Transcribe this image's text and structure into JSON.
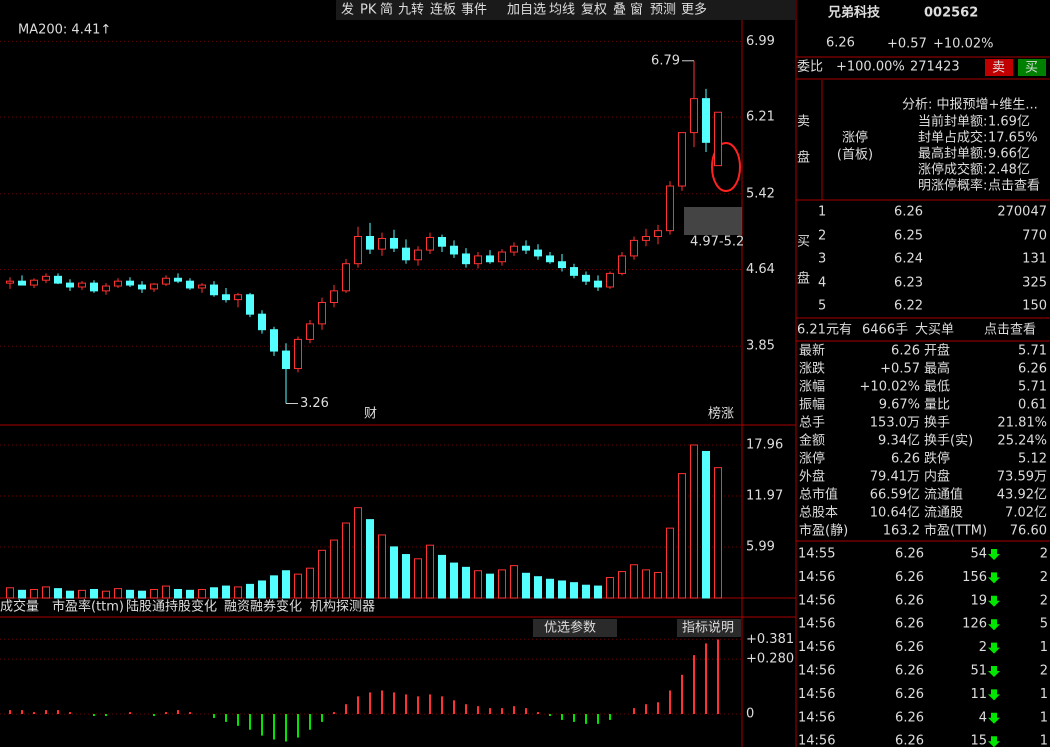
{
  "toolbar": {
    "buttons": [
      "发",
      "PK",
      "简",
      "九转",
      "连板",
      "事件",
      "加自选",
      "均线",
      "复权",
      "叠",
      "窗",
      "预测",
      "更多"
    ]
  },
  "price_chart": {
    "ma_label": "MA200: 4.41↑",
    "ylim": [
      3.09,
      7.21
    ],
    "yticks": [
      6.99,
      6.21,
      5.42,
      4.64,
      3.85
    ],
    "high_label": 6.79,
    "low_label": 3.26,
    "range_label": "4.97-5.2",
    "event_labels": [
      "财",
      "榜涨"
    ],
    "up_color": "#ff3232",
    "down_color": "#54ffff",
    "candles": [
      [
        4.5,
        4.56,
        4.44,
        4.52
      ],
      [
        4.52,
        4.58,
        4.48,
        4.48
      ],
      [
        4.48,
        4.55,
        4.45,
        4.53
      ],
      [
        4.53,
        4.6,
        4.5,
        4.57
      ],
      [
        4.57,
        4.6,
        4.49,
        4.5
      ],
      [
        4.5,
        4.54,
        4.42,
        4.46
      ],
      [
        4.46,
        4.52,
        4.43,
        4.5
      ],
      [
        4.5,
        4.53,
        4.4,
        4.42
      ],
      [
        4.42,
        4.5,
        4.38,
        4.47
      ],
      [
        4.47,
        4.55,
        4.45,
        4.52
      ],
      [
        4.52,
        4.56,
        4.46,
        4.48
      ],
      [
        4.48,
        4.52,
        4.4,
        4.44
      ],
      [
        4.44,
        4.5,
        4.41,
        4.49
      ],
      [
        4.49,
        4.58,
        4.47,
        4.55
      ],
      [
        4.55,
        4.6,
        4.5,
        4.52
      ],
      [
        4.52,
        4.55,
        4.43,
        4.45
      ],
      [
        4.45,
        4.5,
        4.4,
        4.48
      ],
      [
        4.48,
        4.52,
        4.36,
        4.38
      ],
      [
        4.38,
        4.45,
        4.3,
        4.33
      ],
      [
        4.33,
        4.4,
        4.25,
        4.38
      ],
      [
        4.38,
        4.4,
        4.15,
        4.18
      ],
      [
        4.18,
        4.22,
        3.98,
        4.02
      ],
      [
        4.02,
        4.05,
        3.75,
        3.8
      ],
      [
        3.8,
        3.88,
        3.26,
        3.62
      ],
      [
        3.62,
        3.95,
        3.58,
        3.92
      ],
      [
        3.92,
        4.12,
        3.88,
        4.08
      ],
      [
        4.08,
        4.35,
        4.02,
        4.3
      ],
      [
        4.3,
        4.48,
        4.25,
        4.42
      ],
      [
        4.42,
        4.75,
        4.4,
        4.7
      ],
      [
        4.7,
        5.08,
        4.66,
        4.98
      ],
      [
        4.98,
        5.12,
        4.8,
        4.85
      ],
      [
        4.85,
        5.02,
        4.78,
        4.96
      ],
      [
        4.96,
        5.05,
        4.82,
        4.86
      ],
      [
        4.86,
        4.95,
        4.7,
        4.74
      ],
      [
        4.74,
        4.88,
        4.68,
        4.84
      ],
      [
        4.84,
        5.02,
        4.8,
        4.97
      ],
      [
        4.97,
        5.0,
        4.82,
        4.88
      ],
      [
        4.88,
        4.94,
        4.76,
        4.8
      ],
      [
        4.8,
        4.86,
        4.66,
        4.7
      ],
      [
        4.7,
        4.82,
        4.65,
        4.78
      ],
      [
        4.78,
        4.84,
        4.7,
        4.72
      ],
      [
        4.72,
        4.85,
        4.68,
        4.82
      ],
      [
        4.82,
        4.92,
        4.78,
        4.88
      ],
      [
        4.88,
        4.94,
        4.8,
        4.84
      ],
      [
        4.84,
        4.9,
        4.74,
        4.78
      ],
      [
        4.78,
        4.82,
        4.7,
        4.72
      ],
      [
        4.72,
        4.8,
        4.62,
        4.66
      ],
      [
        4.66,
        4.7,
        4.55,
        4.58
      ],
      [
        4.58,
        4.62,
        4.48,
        4.52
      ],
      [
        4.52,
        4.58,
        4.42,
        4.46
      ],
      [
        4.46,
        4.62,
        4.44,
        4.6
      ],
      [
        4.6,
        4.82,
        4.58,
        4.78
      ],
      [
        4.78,
        4.98,
        4.74,
        4.94
      ],
      [
        4.94,
        5.06,
        4.88,
        4.98
      ],
      [
        4.98,
        5.1,
        4.9,
        5.04
      ],
      [
        5.04,
        5.55,
        5.0,
        5.5
      ],
      [
        5.5,
        6.05,
        5.45,
        6.05
      ],
      [
        6.05,
        6.79,
        5.9,
        6.4
      ],
      [
        6.4,
        6.5,
        5.85,
        5.95
      ],
      [
        5.71,
        6.26,
        5.71,
        6.26
      ]
    ]
  },
  "volume_chart": {
    "ylim": [
      0,
      19.72
    ],
    "yticks": [
      17.96,
      11.97,
      5.99
    ],
    "values": [
      1.2,
      0.9,
      1.0,
      1.3,
      1.1,
      0.8,
      0.9,
      1.0,
      0.8,
      1.1,
      0.9,
      0.8,
      1.0,
      1.4,
      1.0,
      0.9,
      1.0,
      1.2,
      1.4,
      1.3,
      1.6,
      2.0,
      2.6,
      3.2,
      2.8,
      3.5,
      5.6,
      6.8,
      8.8,
      10.6,
      9.2,
      7.4,
      6.0,
      5.1,
      4.6,
      6.2,
      5.0,
      4.1,
      3.6,
      3.2,
      2.8,
      3.3,
      3.8,
      2.9,
      2.5,
      2.2,
      2.0,
      1.8,
      1.5,
      1.4,
      2.4,
      3.1,
      3.9,
      3.3,
      3.0,
      8.2,
      14.6,
      17.96,
      17.2,
      15.3
    ]
  },
  "tabs": [
    "成交量",
    "市盈率(ttm)",
    "陆股通持股变化",
    "融资融券变化",
    "机构探测器"
  ],
  "macd_chart": {
    "buttons": [
      "优选参数",
      "指标说明"
    ],
    "ylim": [
      -0.168,
      0.418
    ],
    "yticks": [
      {
        "value": 0.381,
        "label": "+0.381"
      },
      {
        "value": 0.28,
        "label": "+0.280"
      },
      0
    ],
    "values": [
      0.02,
      0.02,
      0.01,
      0.02,
      0.02,
      0.01,
      0,
      -0.01,
      -0.01,
      0,
      0.01,
      0,
      -0.01,
      0.01,
      0.02,
      0.01,
      0,
      -0.02,
      -0.04,
      -0.06,
      -0.08,
      -0.11,
      -0.13,
      -0.14,
      -0.12,
      -0.08,
      -0.04,
      0.01,
      0.05,
      0.09,
      0.11,
      0.12,
      0.11,
      0.1,
      0.09,
      0.1,
      0.09,
      0.07,
      0.05,
      0.04,
      0.03,
      0.03,
      0.04,
      0.03,
      0.01,
      -0.01,
      -0.03,
      -0.04,
      -0.05,
      -0.05,
      -0.03,
      0,
      0.03,
      0.05,
      0.06,
      0.12,
      0.2,
      0.3,
      0.36,
      0.38
    ]
  },
  "quote": {
    "name": "兄弟科技",
    "code": "002562",
    "price": "6.26",
    "change": "+0.57",
    "pct": "+10.02%",
    "ratio_label": "委比",
    "ratio": "+100.00%",
    "ratio_diff": "271423",
    "sell_btn": "卖",
    "buy_btn": "买",
    "sell_side": [
      "卖",
      "盘"
    ],
    "limit": "涨停",
    "limit_sub": "(首板)",
    "analysis": "分析: 中报预增+维生...",
    "limit_rows": [
      [
        "当前封单额:",
        "1.69亿"
      ],
      [
        "封单占成交:",
        "17.65%"
      ],
      [
        "最高封单额:",
        "9.66亿"
      ],
      [
        "涨停成交额:",
        "2.48亿"
      ],
      [
        "明涨停概率:",
        "点击查看"
      ]
    ],
    "buy_side": [
      "买",
      "盘"
    ],
    "bids": [
      [
        "1",
        "6.26",
        "270047"
      ],
      [
        "2",
        "6.25",
        "770"
      ],
      [
        "3",
        "6.24",
        "131"
      ],
      [
        "4",
        "6.23",
        "325"
      ],
      [
        "5",
        "6.22",
        "150"
      ]
    ],
    "big_order": [
      "6.21元有",
      "6466手",
      "大买单",
      "点击查看"
    ],
    "stats": [
      [
        "最新",
        "6.26",
        "开盘",
        "5.71"
      ],
      [
        "涨跌",
        "+0.57",
        "最高",
        "6.26"
      ],
      [
        "涨幅",
        "+10.02%",
        "最低",
        "5.71"
      ],
      [
        "振幅",
        "9.67%",
        "量比",
        "0.61"
      ],
      [
        "总手",
        "153.0万",
        "换手",
        "21.81%"
      ],
      [
        "金额",
        "9.34亿",
        "换手(实)",
        "25.24%"
      ],
      [
        "涨停",
        "6.26",
        "跌停",
        "5.12"
      ],
      [
        "外盘",
        "79.41万",
        "内盘",
        "73.59万"
      ],
      [
        "总市值",
        "66.59亿",
        "流通值",
        "43.92亿"
      ],
      [
        "总股本",
        "10.64亿",
        "流通股",
        "7.02亿"
      ],
      [
        "市盈(静)",
        "163.2",
        "市盈(TTM)",
        "76.60"
      ]
    ],
    "ticks": [
      [
        "14:55",
        "6.26",
        "54",
        "2"
      ],
      [
        "14:56",
        "6.26",
        "156",
        "2"
      ],
      [
        "14:56",
        "6.26",
        "19",
        "2"
      ],
      [
        "14:56",
        "6.26",
        "126",
        "5"
      ],
      [
        "14:56",
        "6.26",
        "2",
        "1"
      ],
      [
        "14:56",
        "6.26",
        "51",
        "2"
      ],
      [
        "14:56",
        "6.26",
        "11",
        "1"
      ],
      [
        "14:56",
        "6.26",
        "4",
        "1"
      ],
      [
        "14:56",
        "6.26",
        "15",
        "1"
      ]
    ]
  }
}
